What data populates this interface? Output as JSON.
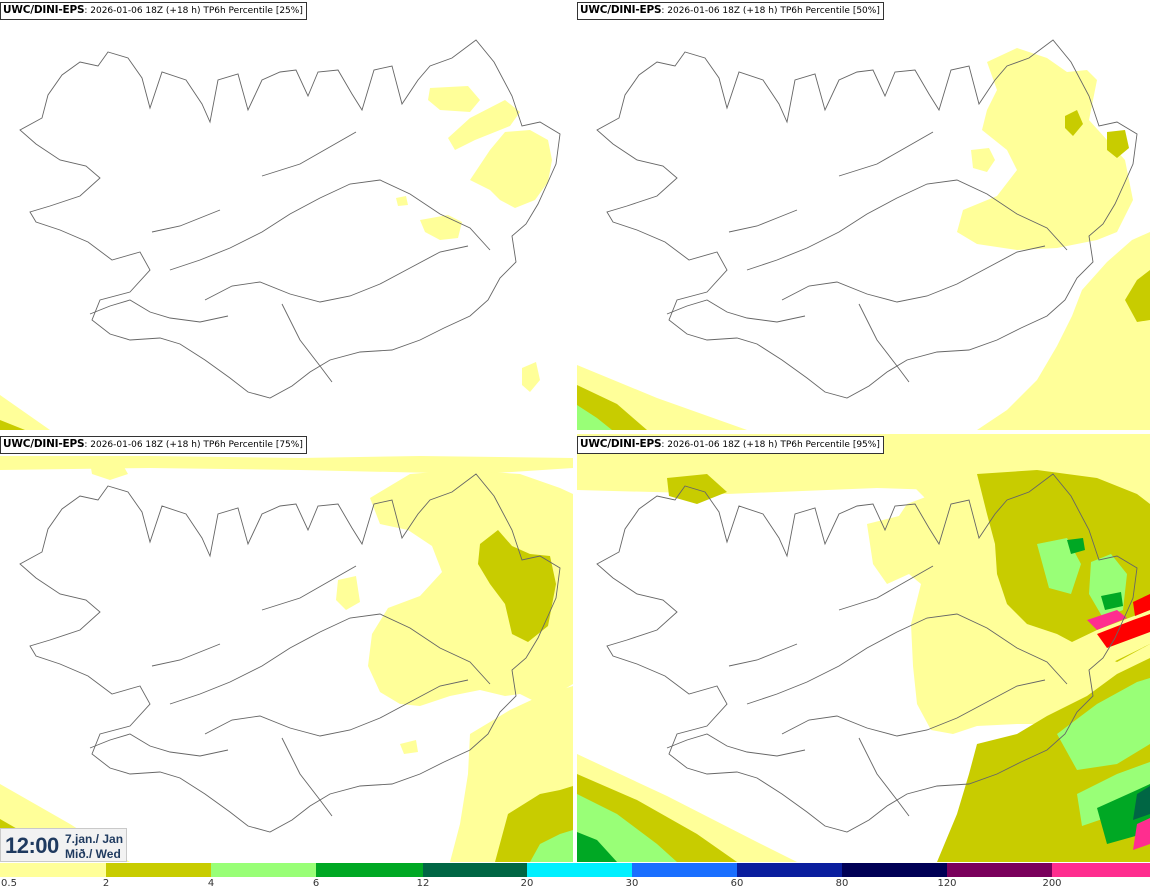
{
  "panels": [
    {
      "model": "UWC/DINI-EPS",
      "info": ": 2026-01-06 18Z (+18 h) TP6h Percentile [25%]"
    },
    {
      "model": "UWC/DINI-EPS",
      "info": ": 2026-01-06 18Z (+18 h) TP6h Percentile [50%]"
    },
    {
      "model": "UWC/DINI-EPS",
      "info": ": 2026-01-06 18Z (+18 h) TP6h Percentile [75%]"
    },
    {
      "model": "UWC/DINI-EPS",
      "info": ": 2026-01-06 18Z (+18 h) TP6h Percentile [95%]"
    }
  ],
  "timebox": {
    "time": "12:00",
    "date": "7.jan./ Jan",
    "dow": "Mið./ Wed"
  },
  "legend": {
    "ticks": [
      "0.5",
      "2",
      "4",
      "6",
      "12",
      "20",
      "30",
      "60",
      "80",
      "120",
      "200"
    ],
    "colors": [
      "#ffff99",
      "#c8cc00",
      "#99ff77",
      "#00a824",
      "#006644",
      "#00f0ff",
      "#1a6fff",
      "#0a1e9e",
      "#000055",
      "#7a005c",
      "#ff2d8f",
      "#ff0000"
    ]
  },
  "colors": {
    "precip_light": "#ffff99",
    "precip_2": "#c8cc00",
    "precip_4": "#99ff77",
    "precip_6": "#00a824",
    "precip_12": "#006644",
    "coastline": "#666666"
  }
}
